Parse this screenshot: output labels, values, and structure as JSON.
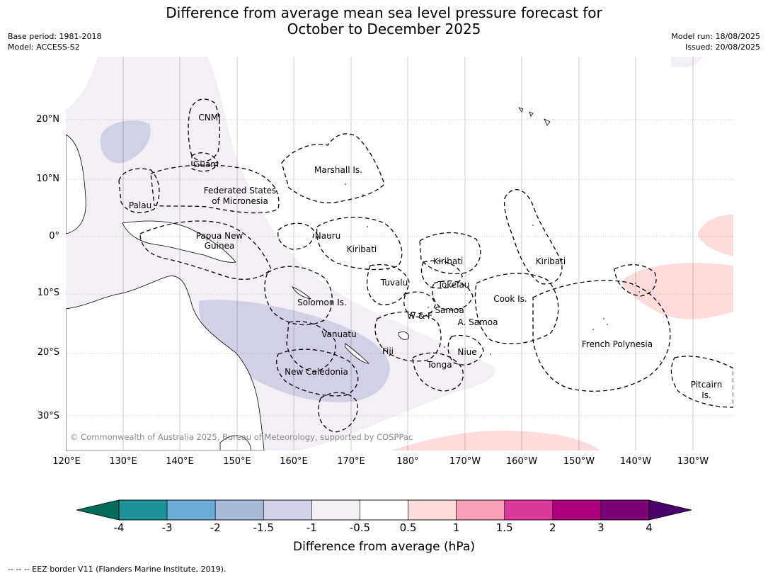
{
  "title_line1": "Difference from average mean sea level pressure forecast for",
  "title_line2": "October to December 2025",
  "meta_left": [
    "Base period: 1981-2018",
    "Model: ACCESS-S2"
  ],
  "meta_right": [
    "Model run: 18/08/2025",
    "Issued: 20/08/2025"
  ],
  "lat_labels": [
    "20°N",
    "10°N",
    "0°",
    "10°S",
    "20°S",
    "30°S"
  ],
  "lon_labels": [
    "120°E",
    "130°E",
    "140°E",
    "150°E",
    "160°E",
    "170°E",
    "180°",
    "170°W",
    "160°W",
    "150°W",
    "140°W",
    "130°W"
  ],
  "region_labels": [
    "CNMI",
    "Guam",
    "Marshall Is.",
    "Federated States",
    "of Micronesia",
    "Palau",
    "Papua New",
    "Guinea",
    "Nauru",
    "Kiribati",
    "Kiribati",
    "Kiribati",
    "Tuvalu",
    "Tokelau",
    "Solomon Is.",
    "W & F",
    "Samoa",
    "A. Samoa",
    "Cook Is.",
    "Vanuatu",
    "Fiji",
    "Niue",
    "French Polynesia",
    "New Caledonia",
    "Tonga",
    "Pitcairn",
    "Is."
  ],
  "copyright": "© Commonwealth of Australia 2025, Bureau of Meteorology, supported by COSPPac",
  "colorbar": {
    "ticks": [
      "-4",
      "-3",
      "-2",
      "-1.5",
      "-1",
      "-0.5",
      "0.5",
      "1",
      "1.5",
      "2",
      "3",
      "4"
    ],
    "colors": [
      "#1a9298",
      "#6aacd5",
      "#a7b9d7",
      "#d0d0e6",
      "#f4eef7",
      "#ffffff",
      "#fddcdb",
      "#f9a0b8",
      "#d9399a",
      "#ad017e",
      "#7b0177"
    ],
    "under_color": "#016c59",
    "over_color": "#49006a",
    "label": "Difference from average (hPa)"
  },
  "footer": "--  --  -- EEZ border V11 (Flanders Marine Institute, 2019)."
}
